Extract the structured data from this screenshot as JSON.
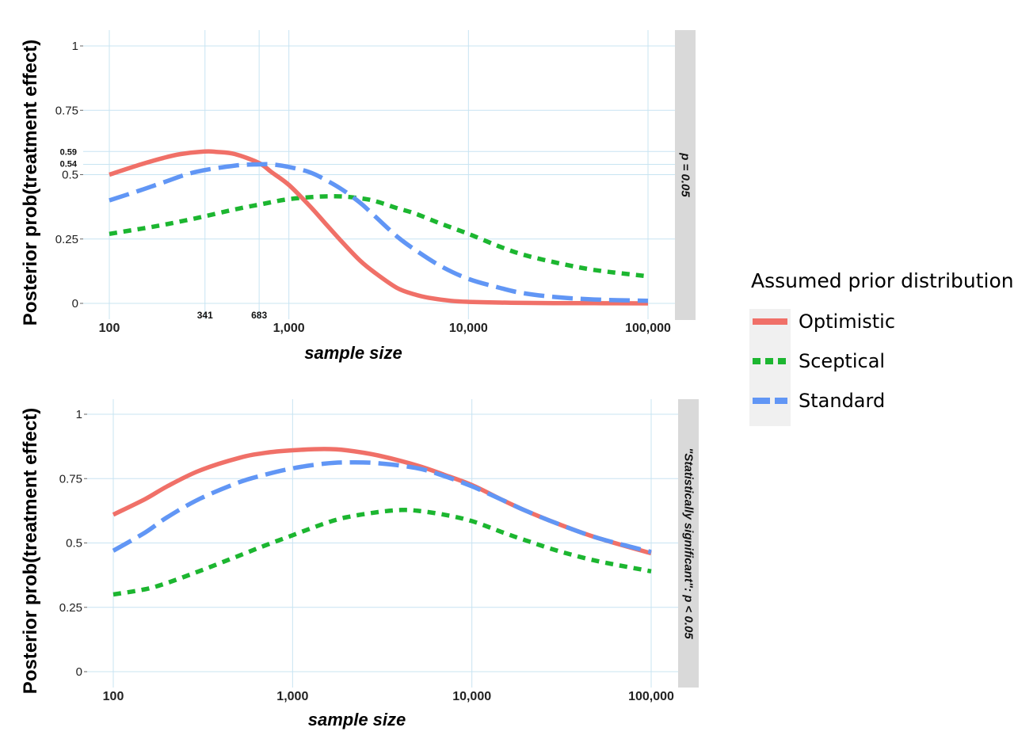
{
  "chart_data": [
    {
      "type": "line",
      "strip_label": "p = 0.05",
      "xlabel": "sample size",
      "ylabel": "Posterior prob(treatment effect)",
      "x_scale": "log10",
      "xlim": [
        100,
        100000
      ],
      "ylim": [
        0,
        1
      ],
      "x_ticks": [
        100,
        1000,
        10000,
        100000
      ],
      "x_tick_labels": [
        "100",
        "1,000",
        "10,000",
        "100,000"
      ],
      "y_ticks": [
        0,
        0.25,
        0.5,
        0.75,
        1
      ],
      "y_tick_labels": [
        "0",
        "0.25",
        "0.5",
        "0.75",
        "1"
      ],
      "extra_x_lines": [
        341,
        683
      ],
      "extra_x_labels": [
        "341",
        "683"
      ],
      "extra_y_lines": [
        0.59,
        0.54
      ],
      "extra_y_labels": [
        "0.59",
        "0.54"
      ],
      "grid": true,
      "series": [
        {
          "name": "Optimistic",
          "x": [
            100,
            150,
            200,
            250,
            341,
            400,
            500,
            683,
            800,
            1000,
            1300,
            1600,
            2000,
            2500,
            3000,
            4000,
            5000,
            6000,
            8000,
            10000,
            15000,
            20000,
            30000,
            50000,
            100000
          ],
          "y": [
            0.5,
            0.54,
            0.565,
            0.58,
            0.59,
            0.588,
            0.58,
            0.545,
            0.51,
            0.46,
            0.38,
            0.31,
            0.235,
            0.165,
            0.12,
            0.06,
            0.035,
            0.022,
            0.01,
            0.006,
            0.003,
            0.002,
            0.001,
            0.0005,
            0.0
          ]
        },
        {
          "name": "Sceptical",
          "x": [
            100,
            150,
            200,
            300,
            500,
            700,
            1000,
            1500,
            2000,
            2500,
            3000,
            4000,
            5000,
            7000,
            10000,
            15000,
            20000,
            30000,
            50000,
            100000
          ],
          "y": [
            0.27,
            0.29,
            0.305,
            0.33,
            0.365,
            0.385,
            0.405,
            0.415,
            0.415,
            0.408,
            0.398,
            0.37,
            0.35,
            0.31,
            0.27,
            0.22,
            0.19,
            0.16,
            0.13,
            0.105
          ]
        },
        {
          "name": "Standard",
          "x": [
            100,
            150,
            200,
            300,
            500,
            683,
            800,
            1000,
            1300,
            1600,
            2000,
            2500,
            3000,
            4000,
            5000,
            7000,
            10000,
            15000,
            20000,
            30000,
            50000,
            100000
          ],
          "y": [
            0.4,
            0.44,
            0.47,
            0.51,
            0.535,
            0.54,
            0.54,
            0.53,
            0.51,
            0.48,
            0.44,
            0.39,
            0.34,
            0.26,
            0.21,
            0.145,
            0.095,
            0.06,
            0.04,
            0.025,
            0.015,
            0.01
          ]
        }
      ]
    },
    {
      "type": "line",
      "strip_label": "\"Statistically significant\":   p < 0.05",
      "xlabel": "sample size",
      "ylabel": "Posterior prob(treatment effect)",
      "x_scale": "log10",
      "xlim": [
        100,
        100000
      ],
      "ylim": [
        0,
        1
      ],
      "x_ticks": [
        100,
        1000,
        10000,
        100000
      ],
      "x_tick_labels": [
        "100",
        "1,000",
        "10,000",
        "100,000"
      ],
      "y_ticks": [
        0,
        0.25,
        0.5,
        0.75,
        1
      ],
      "y_tick_labels": [
        "0",
        "0.25",
        "0.5",
        "0.75",
        "1"
      ],
      "grid": true,
      "series": [
        {
          "name": "Optimistic",
          "x": [
            100,
            150,
            200,
            300,
            500,
            700,
            1000,
            1500,
            2000,
            3000,
            5000,
            7000,
            10000,
            15000,
            20000,
            30000,
            50000,
            100000
          ],
          "y": [
            0.61,
            0.67,
            0.72,
            0.78,
            0.83,
            0.85,
            0.86,
            0.865,
            0.86,
            0.84,
            0.8,
            0.765,
            0.725,
            0.665,
            0.625,
            0.575,
            0.52,
            0.46
          ]
        },
        {
          "name": "Sceptical",
          "x": [
            100,
            150,
            200,
            300,
            500,
            700,
            1000,
            1500,
            2000,
            3000,
            4000,
            5000,
            7000,
            10000,
            15000,
            20000,
            30000,
            50000,
            100000
          ],
          "y": [
            0.3,
            0.32,
            0.345,
            0.39,
            0.45,
            0.49,
            0.53,
            0.575,
            0.6,
            0.62,
            0.628,
            0.625,
            0.61,
            0.585,
            0.54,
            0.51,
            0.47,
            0.43,
            0.39
          ]
        },
        {
          "name": "Standard",
          "x": [
            100,
            150,
            200,
            300,
            500,
            700,
            1000,
            1500,
            2000,
            3000,
            5000,
            7000,
            10000,
            15000,
            20000,
            30000,
            50000,
            100000
          ],
          "y": [
            0.47,
            0.54,
            0.6,
            0.67,
            0.735,
            0.765,
            0.79,
            0.808,
            0.813,
            0.81,
            0.79,
            0.76,
            0.72,
            0.665,
            0.625,
            0.575,
            0.52,
            0.465
          ]
        }
      ]
    }
  ],
  "legend": {
    "title": "Assumed prior distribution",
    "items": [
      {
        "label": "Optimistic",
        "color": "#F07068",
        "dash": "solid"
      },
      {
        "label": "Sceptical",
        "color": "#1CB630",
        "dash": "dotted"
      },
      {
        "label": "Standard",
        "color": "#6196F5",
        "dash": "dashed"
      }
    ]
  },
  "colors": {
    "Optimistic": "#F07068",
    "Sceptical": "#1CB630",
    "Standard": "#6196F5",
    "grid": "#c8e4f2",
    "strip": "#d9d9d9"
  }
}
